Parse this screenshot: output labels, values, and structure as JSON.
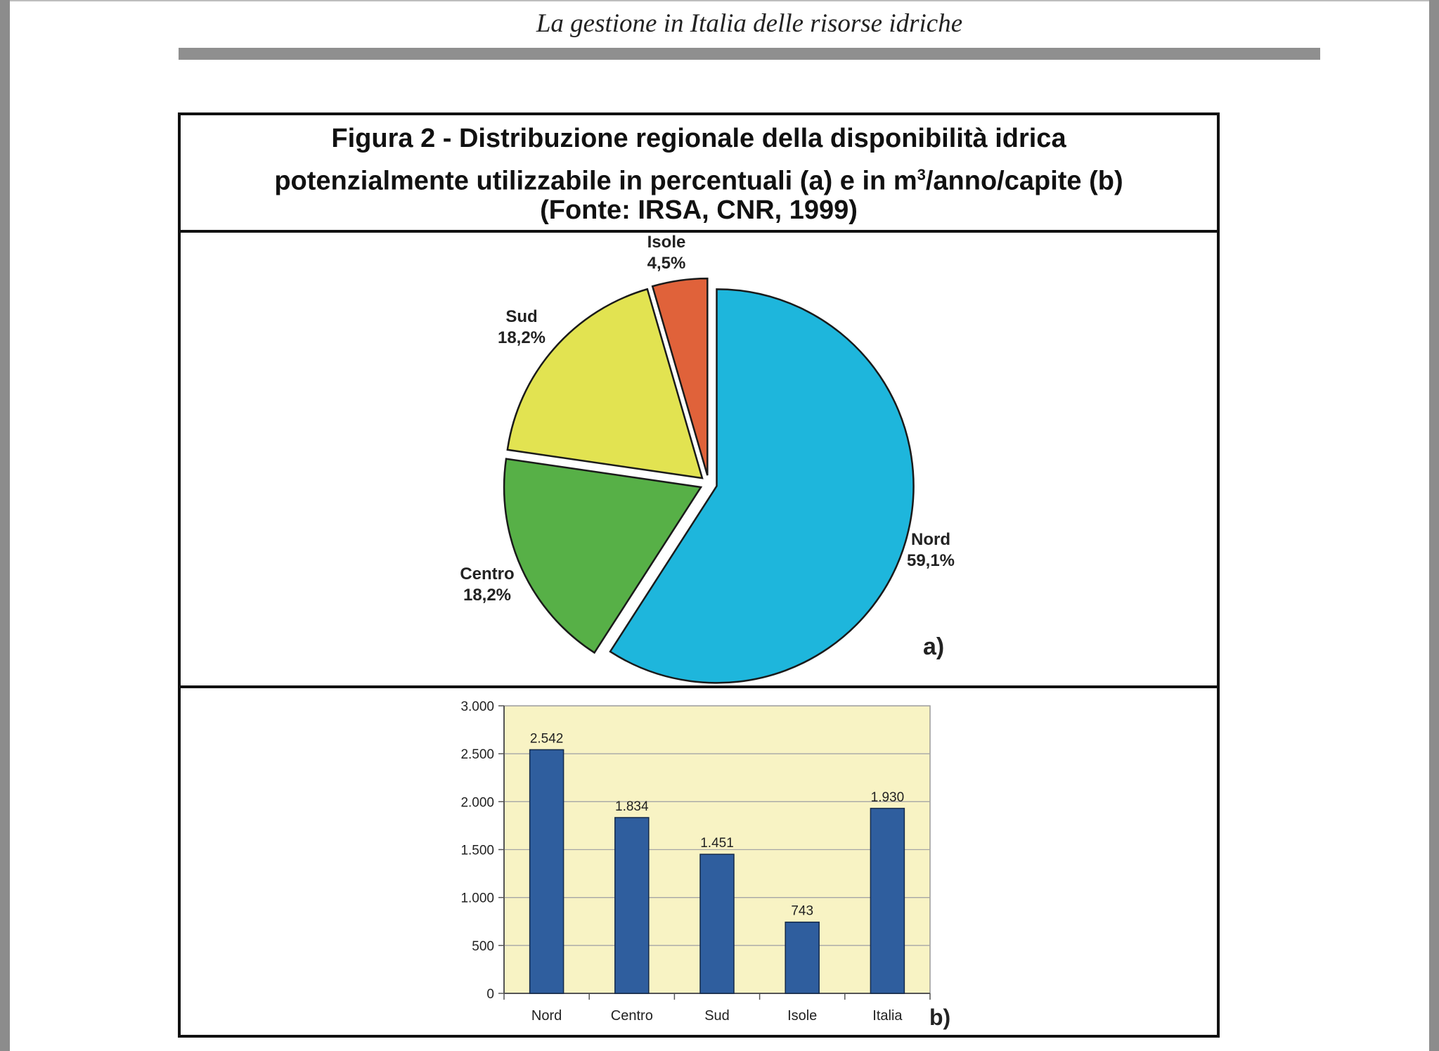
{
  "page": {
    "running_head": "La gestione in Italia delle risorse idriche"
  },
  "figure": {
    "title_line1": "Figura 2 - Distribuzione regionale della disponibilità idrica",
    "title_line2_pre": "potenzialmente utilizzabile in percentuali (a) e in m",
    "title_line2_sup": "3",
    "title_line2_post": "/anno/capite (b)",
    "title_line3": "(Fonte: IRSA, CNR, 1999)"
  },
  "chart_data": [
    {
      "type": "pie",
      "panel_label": "a)",
      "categories": [
        "Nord",
        "Centro",
        "Sud",
        "Isole"
      ],
      "values": [
        59.1,
        18.2,
        18.2,
        4.5
      ],
      "value_labels": [
        "59,1%",
        "18,2%",
        "18,2%",
        "4,5%"
      ],
      "colors": [
        "#1eb6dc",
        "#57b047",
        "#e2e351",
        "#e0623a"
      ],
      "exploded": true,
      "legend": "none"
    },
    {
      "type": "bar",
      "panel_label": "b)",
      "categories": [
        "Nord",
        "Centro",
        "Sud",
        "Isole",
        "Italia"
      ],
      "values": [
        2542,
        1834,
        1451,
        743,
        1930
      ],
      "value_labels": [
        "2.542",
        "1.834",
        "1.451",
        "743",
        "1.930"
      ],
      "ylim": [
        0,
        3000
      ],
      "yticks": [
        0,
        500,
        1000,
        1500,
        2000,
        2500,
        3000
      ],
      "ytick_labels": [
        "0",
        "500",
        "1.000",
        "1.500",
        "2.000",
        "2.500",
        "3.000"
      ],
      "grid": true,
      "plot_background": "#f8f3c4",
      "bar_color": "#2f5e9e",
      "legend": "none"
    }
  ]
}
